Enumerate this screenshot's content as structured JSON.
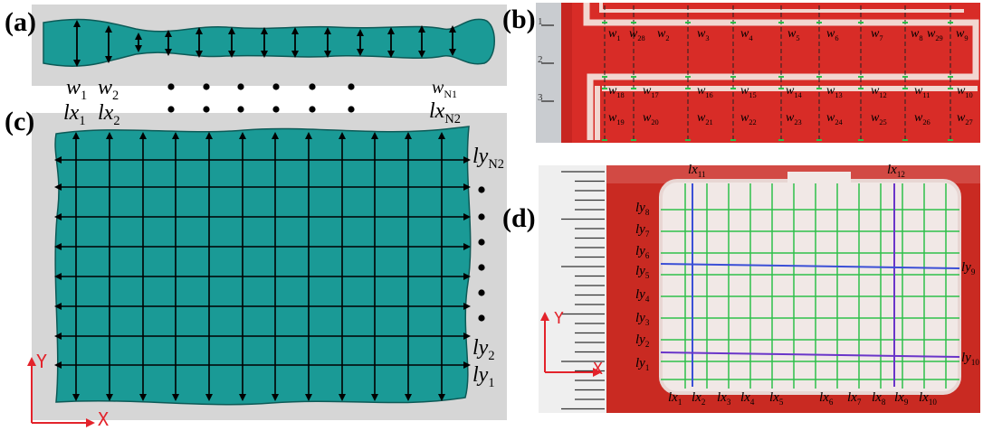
{
  "panels": {
    "a": "(a)",
    "b": "(b)",
    "c": "(c)",
    "d": "(d)"
  },
  "colors": {
    "teal": "#1a9a96",
    "teal_edge": "#0d5a57",
    "gray_bg": "#d6d6d6",
    "red_board": "#d82c27",
    "red_dark": "#a91a16",
    "paste": "#f2d6d0",
    "green_grid": "#2fbf4a",
    "blue_line": "#3b4fd6",
    "purple_line": "#6a35c9",
    "axis_red": "#e3232b"
  },
  "panel_a": {
    "w1": {
      "base": "w",
      "sub": "1"
    },
    "w2": {
      "base": "w",
      "sub": "2"
    },
    "wN1": {
      "base": "w",
      "sub": "N1"
    },
    "lx1": {
      "base": "lx",
      "sub": "1"
    },
    "lx2": {
      "base": "lx",
      "sub": "2"
    },
    "lxN2": {
      "base": "lx",
      "sub": "N2"
    }
  },
  "panel_c": {
    "lyN2": {
      "base": "ly",
      "sub": "N2"
    },
    "ly2": {
      "base": "ly",
      "sub": "2"
    },
    "ly1": {
      "base": "ly",
      "sub": "1"
    },
    "axis_x": "X",
    "axis_y": "Y"
  },
  "panel_b": {
    "top_row": [
      "w1",
      "w28",
      "w2",
      "w3",
      "w4",
      "w5",
      "w6",
      "w7",
      "w8",
      "w29",
      "w9"
    ],
    "row_mid_a": [
      "w18",
      "w17",
      "w16",
      "w15",
      "w14",
      "w13",
      "w12",
      "w11",
      "w10"
    ],
    "row_mid_b": [
      "w19",
      "w20",
      "w21",
      "w22",
      "w23",
      "w24",
      "w25",
      "w26",
      "w27"
    ],
    "ruler_marks": [
      "1",
      "2",
      "3"
    ]
  },
  "panel_d": {
    "top": [
      "lx11",
      "lx12"
    ],
    "bottom": [
      "lx1",
      "lx2",
      "lx3",
      "lx4",
      "lx5",
      "lx6",
      "lx7",
      "lx8",
      "lx9",
      "lx10"
    ],
    "left": [
      "ly8",
      "ly7",
      "ly6",
      "ly5",
      "ly4",
      "ly3",
      "ly2",
      "ly1"
    ],
    "right": [
      "ly9",
      "ly10"
    ],
    "axis_x": "X",
    "axis_y": "Y"
  }
}
